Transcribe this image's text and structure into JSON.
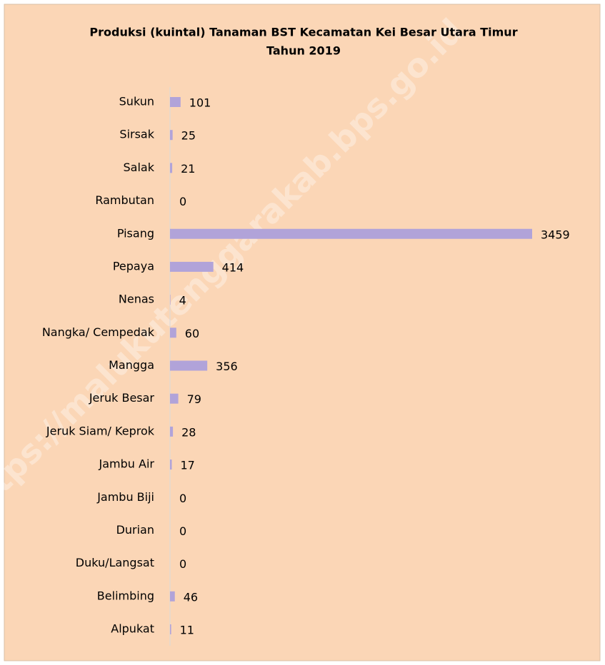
{
  "chart_data": {
    "type": "barh",
    "title": "Produksi (kuintal) Tanaman BST Kecamatan Kei Besar Utara Timur",
    "subtitle": "Tahun 2019",
    "watermark": "https://malukutenggarakab.bps.go.id",
    "categories": [
      "Sukun",
      "Sirsak",
      "Salak",
      "Rambutan",
      "Pisang",
      "Pepaya",
      "Nenas",
      "Nangka/ Cempedak",
      "Mangga",
      "Jeruk Besar",
      "Jeruk Siam/ Keprok",
      "Jambu Air",
      "Jambu Biji",
      "Durian",
      "Duku/Langsat",
      "Belimbing",
      "Alpukat"
    ],
    "values": [
      101,
      25,
      21,
      0,
      3459,
      414,
      4,
      60,
      356,
      79,
      28,
      17,
      0,
      0,
      0,
      46,
      11
    ],
    "color": "#b1a3d9"
  }
}
